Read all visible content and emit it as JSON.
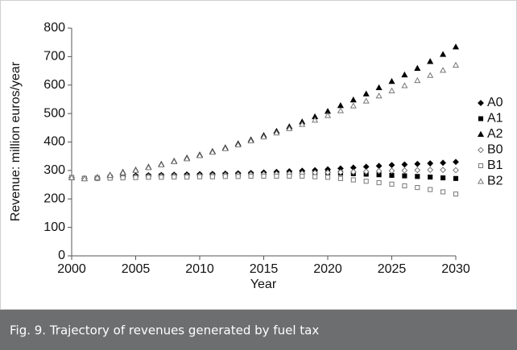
{
  "chart_data": {
    "type": "scatter",
    "x_label": "Year",
    "y_label": "Revenue: million euros/year",
    "x": [
      2000,
      2001,
      2002,
      2003,
      2004,
      2005,
      2006,
      2007,
      2008,
      2009,
      2010,
      2011,
      2012,
      2013,
      2014,
      2015,
      2016,
      2017,
      2018,
      2019,
      2020,
      2021,
      2022,
      2023,
      2024,
      2025,
      2026,
      2027,
      2028,
      2029,
      2030
    ],
    "xlim": [
      2000,
      2030
    ],
    "xticks": [
      2000,
      2005,
      2010,
      2015,
      2020,
      2025,
      2030
    ],
    "ylim": [
      0,
      800
    ],
    "yticks": [
      0,
      100,
      200,
      300,
      400,
      500,
      600,
      700,
      800
    ],
    "grid": false,
    "legend": "right",
    "series": [
      {
        "name": "A0",
        "color": "#000000",
        "marker": "diamond",
        "filled": true,
        "values": [
          275,
          272,
          274,
          278,
          280,
          282,
          283,
          284,
          285,
          286,
          287,
          288,
          289,
          290,
          291,
          293,
          295,
          297,
          299,
          301,
          304,
          307,
          310,
          313,
          316,
          319,
          321,
          323,
          325,
          327,
          330
        ]
      },
      {
        "name": "A1",
        "color": "#000000",
        "marker": "square",
        "filled": true,
        "values": [
          275,
          272,
          273,
          276,
          278,
          279,
          280,
          281,
          281,
          282,
          283,
          284,
          285,
          286,
          287,
          288,
          289,
          290,
          291,
          292,
          292,
          291,
          289,
          287,
          285,
          283,
          281,
          279,
          277,
          274,
          272
        ]
      },
      {
        "name": "A2",
        "color": "#000000",
        "marker": "triangle",
        "filled": true,
        "values": [
          275,
          272,
          276,
          284,
          294,
          302,
          312,
          322,
          333,
          344,
          355,
          367,
          380,
          394,
          408,
          423,
          438,
          454,
          471,
          489,
          508,
          528,
          548,
          569,
          591,
          613,
          636,
          659,
          683,
          708,
          734
        ]
      },
      {
        "name": "B0",
        "color": "#777777",
        "marker": "diamond",
        "filled": false,
        "values": [
          275,
          272,
          273,
          275,
          277,
          278,
          279,
          280,
          281,
          281,
          282,
          283,
          284,
          285,
          286,
          287,
          288,
          289,
          290,
          292,
          293,
          294,
          295,
          296,
          298,
          299,
          300,
          301,
          302,
          302,
          301
        ]
      },
      {
        "name": "B1",
        "color": "#777777",
        "marker": "square",
        "filled": false,
        "values": [
          275,
          272,
          272,
          273,
          274,
          275,
          276,
          276,
          277,
          277,
          278,
          278,
          279,
          279,
          280,
          280,
          280,
          280,
          280,
          278,
          276,
          272,
          267,
          262,
          257,
          252,
          246,
          240,
          233,
          225,
          217
        ]
      },
      {
        "name": "B2",
        "color": "#777777",
        "marker": "triangle",
        "filled": false,
        "values": [
          275,
          271,
          275,
          283,
          292,
          300,
          310,
          320,
          331,
          341,
          352,
          364,
          377,
          390,
          404,
          418,
          432,
          447,
          462,
          477,
          493,
          510,
          527,
          544,
          562,
          580,
          598,
          616,
          634,
          652,
          670
        ]
      }
    ]
  },
  "caption": "Fig. 9.  Trajectory of revenues generated by fuel tax"
}
